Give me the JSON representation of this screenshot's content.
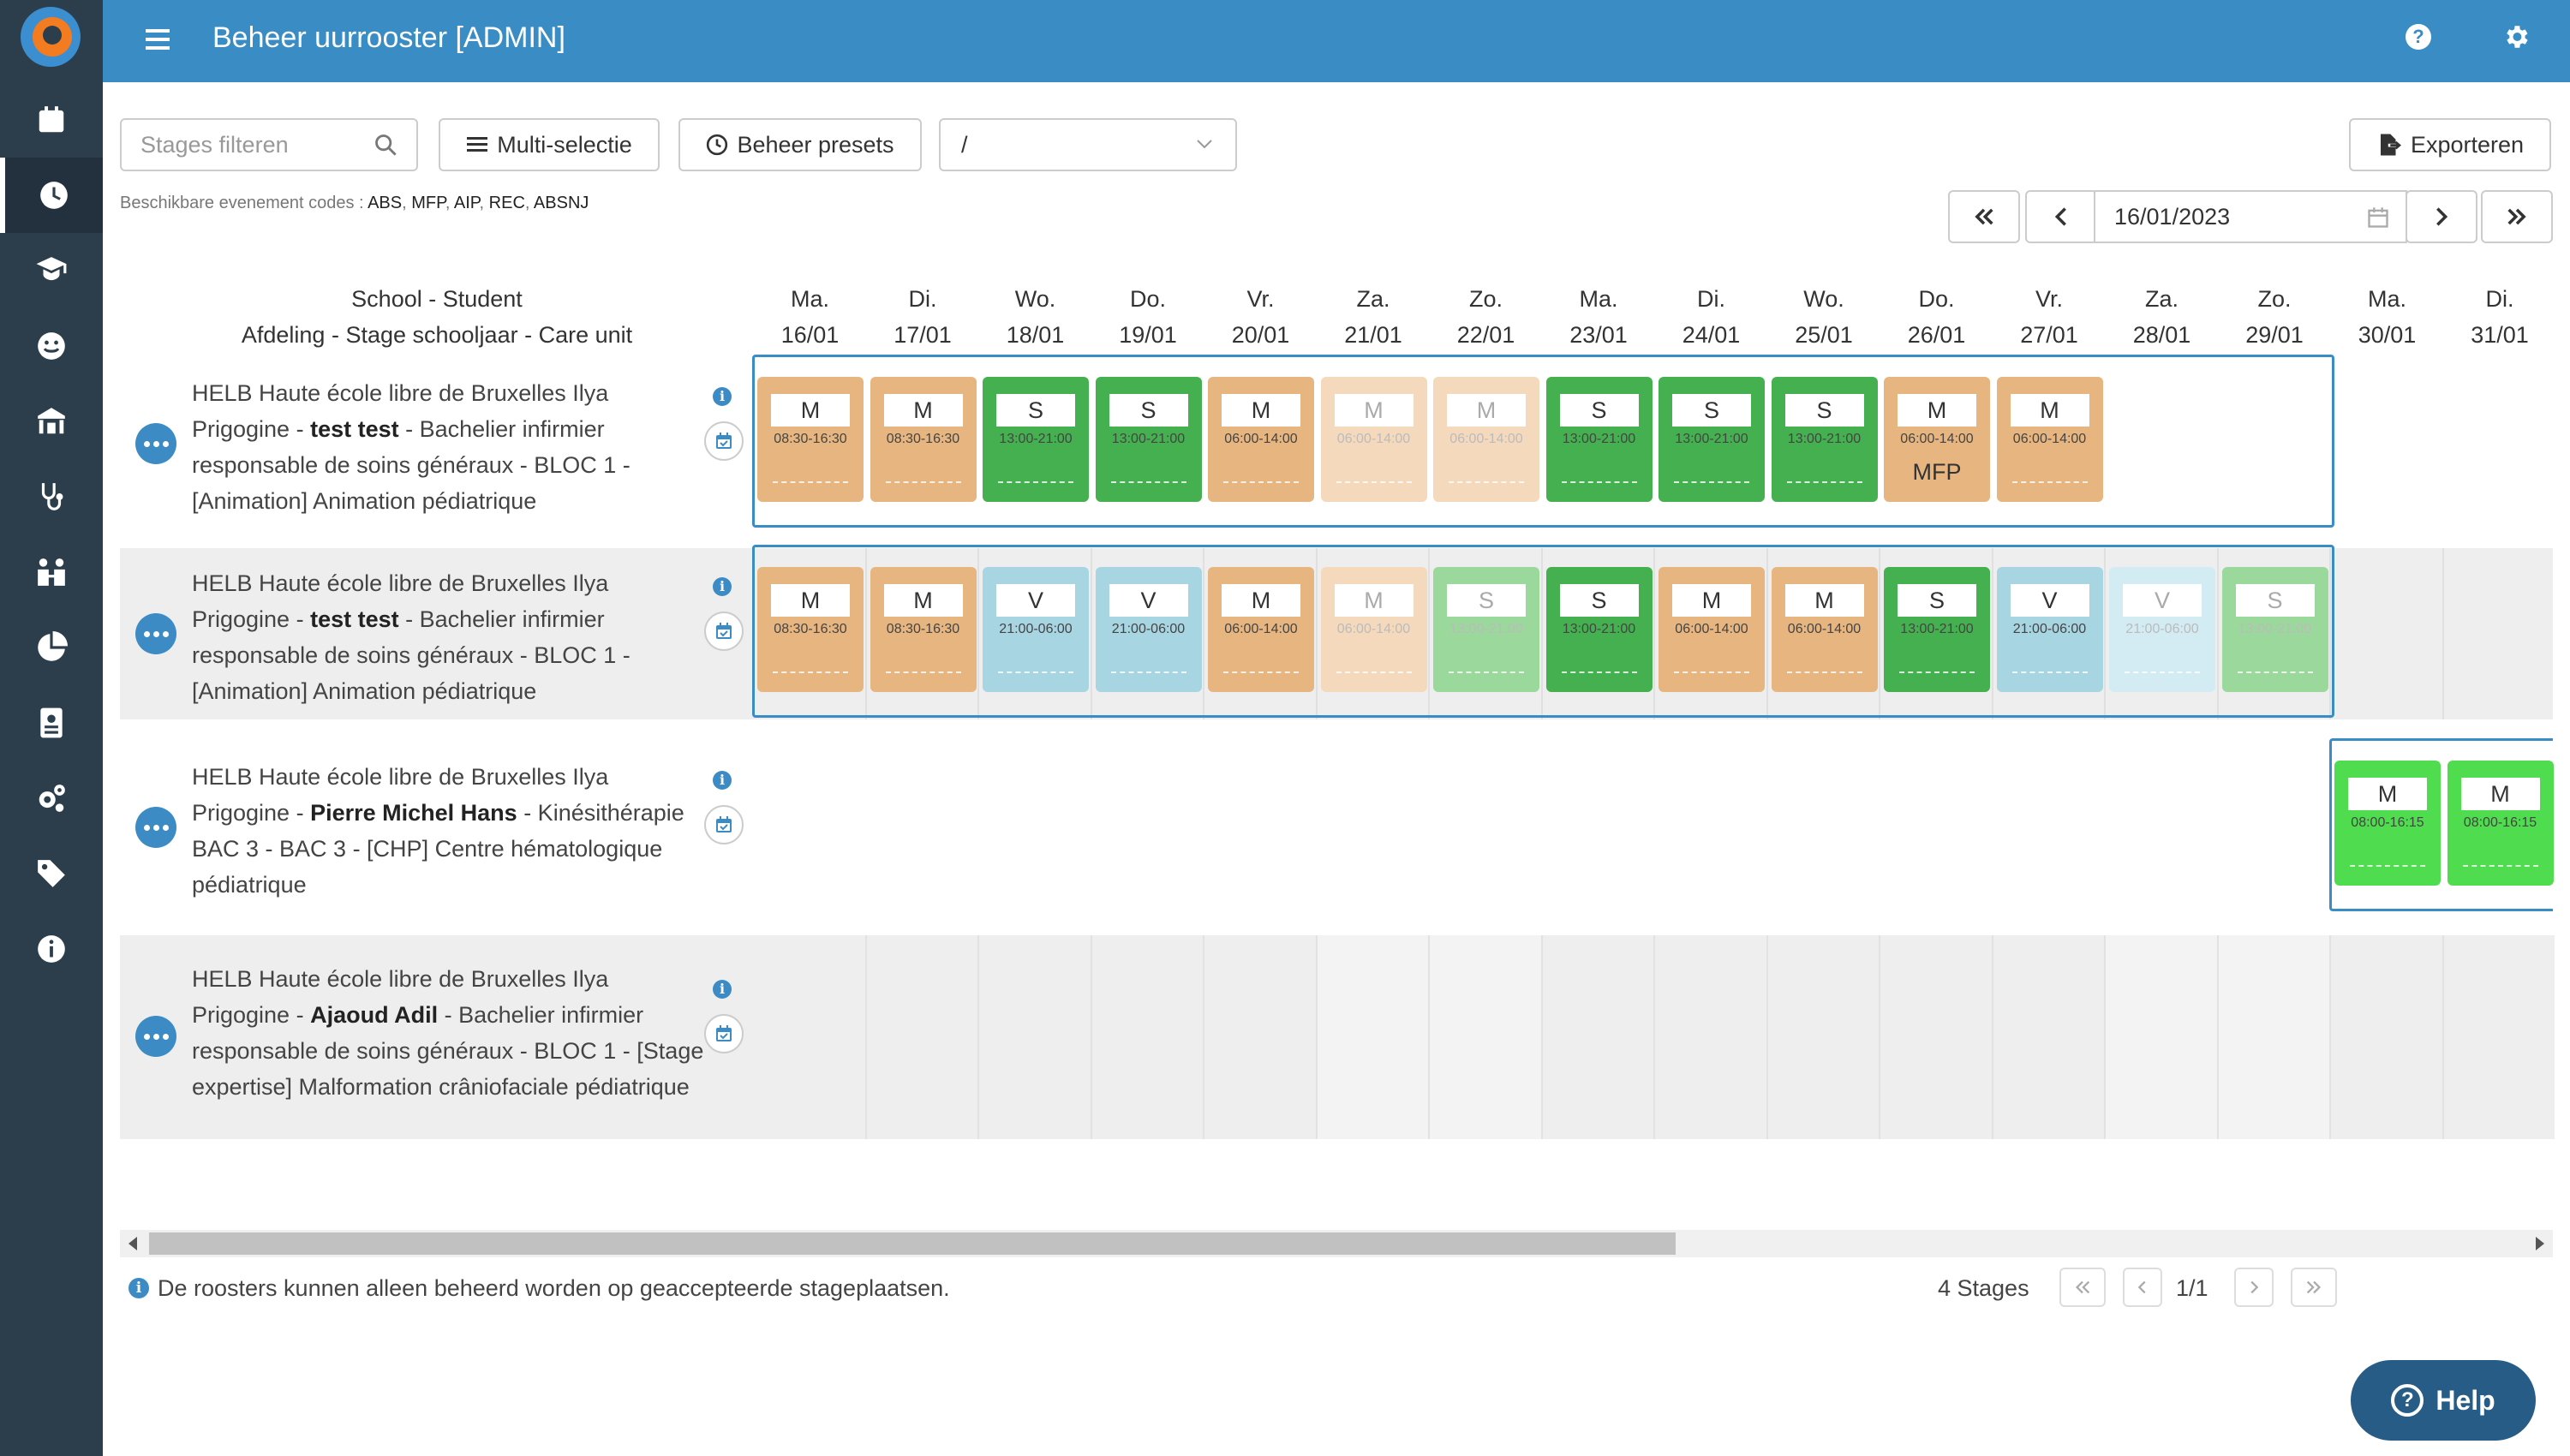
{
  "header": {
    "title": "Beheer uurrooster [ADMIN]"
  },
  "sidebar": {
    "items": [
      "calendar-icon",
      "clock-icon",
      "graduate-icon",
      "smile-icon",
      "school-icon",
      "stethoscope-icon",
      "people-icon",
      "pie-chart-icon",
      "id-card-icon",
      "cogs-icon",
      "tags-icon",
      "info-icon"
    ],
    "active_index": 1
  },
  "toolbar": {
    "filter_placeholder": "Stages filteren",
    "multi_select_label": "Multi-selectie",
    "presets_label": "Beheer presets",
    "preset_value": "/",
    "export_label": "Exporteren",
    "codes_prefix": "Beschikbare evenement codes : ",
    "codes": [
      "ABS",
      "MFP",
      "AIP",
      "REC",
      "ABSNJ"
    ],
    "date": "16/01/2023"
  },
  "columns": {
    "line1": "School - Student",
    "line2": "Afdeling - Stage schooljaar - Care unit"
  },
  "days": [
    {
      "dow": "Ma.",
      "date": "16/01"
    },
    {
      "dow": "Di.",
      "date": "17/01"
    },
    {
      "dow": "Wo.",
      "date": "18/01"
    },
    {
      "dow": "Do.",
      "date": "19/01"
    },
    {
      "dow": "Vr.",
      "date": "20/01"
    },
    {
      "dow": "Za.",
      "date": "21/01"
    },
    {
      "dow": "Zo.",
      "date": "22/01"
    },
    {
      "dow": "Ma.",
      "date": "23/01"
    },
    {
      "dow": "Di.",
      "date": "24/01"
    },
    {
      "dow": "Wo.",
      "date": "25/01"
    },
    {
      "dow": "Do.",
      "date": "26/01"
    },
    {
      "dow": "Vr.",
      "date": "27/01"
    },
    {
      "dow": "Za.",
      "date": "28/01"
    },
    {
      "dow": "Zo.",
      "date": "29/01"
    },
    {
      "dow": "Ma.",
      "date": "30/01"
    },
    {
      "dow": "Di.",
      "date": "31/01"
    }
  ],
  "rows": [
    {
      "pre": "HELB Haute école libre de Bruxelles Ilya Prigogine - ",
      "student": "test test",
      "post": " - Bachelier infirmier responsable de soins généraux - BLOC 1 - [Animation] Animation pédiatrique",
      "selection": [
        0,
        13
      ],
      "shifts": [
        {
          "day": 0,
          "code": "M",
          "time": "08:30-16:30",
          "style": "c-m"
        },
        {
          "day": 1,
          "code": "M",
          "time": "08:30-16:30",
          "style": "c-m"
        },
        {
          "day": 2,
          "code": "S",
          "time": "13:00-21:00",
          "style": "c-s"
        },
        {
          "day": 3,
          "code": "S",
          "time": "13:00-21:00",
          "style": "c-s"
        },
        {
          "day": 4,
          "code": "M",
          "time": "06:00-14:00",
          "style": "c-m"
        },
        {
          "day": 5,
          "code": "M",
          "time": "06:00-14:00",
          "style": "c-m-l"
        },
        {
          "day": 6,
          "code": "M",
          "time": "06:00-14:00",
          "style": "c-m-l"
        },
        {
          "day": 7,
          "code": "S",
          "time": "13:00-21:00",
          "style": "c-s"
        },
        {
          "day": 8,
          "code": "S",
          "time": "13:00-21:00",
          "style": "c-s"
        },
        {
          "day": 9,
          "code": "S",
          "time": "13:00-21:00",
          "style": "c-s"
        },
        {
          "day": 10,
          "code": "M",
          "time": "06:00-14:00",
          "style": "c-m",
          "event": "MFP"
        },
        {
          "day": 11,
          "code": "M",
          "time": "06:00-14:00",
          "style": "c-m"
        }
      ]
    },
    {
      "pre": "HELB Haute école libre de Bruxelles Ilya Prigogine - ",
      "student": "test test",
      "post": " - Bachelier infirmier responsable de soins généraux - BLOC 1 - [Animation] Animation pédiatrique",
      "selection": [
        0,
        13
      ],
      "shifts": [
        {
          "day": 0,
          "code": "M",
          "time": "08:30-16:30",
          "style": "c-m"
        },
        {
          "day": 1,
          "code": "M",
          "time": "08:30-16:30",
          "style": "c-m"
        },
        {
          "day": 2,
          "code": "V",
          "time": "21:00-06:00",
          "style": "c-v"
        },
        {
          "day": 3,
          "code": "V",
          "time": "21:00-06:00",
          "style": "c-v"
        },
        {
          "day": 4,
          "code": "M",
          "time": "06:00-14:00",
          "style": "c-m"
        },
        {
          "day": 5,
          "code": "M",
          "time": "06:00-14:00",
          "style": "c-m-l"
        },
        {
          "day": 6,
          "code": "S",
          "time": "13:00-21:00",
          "style": "c-s-l"
        },
        {
          "day": 7,
          "code": "S",
          "time": "13:00-21:00",
          "style": "c-s"
        },
        {
          "day": 8,
          "code": "M",
          "time": "06:00-14:00",
          "style": "c-m"
        },
        {
          "day": 9,
          "code": "M",
          "time": "06:00-14:00",
          "style": "c-m"
        },
        {
          "day": 10,
          "code": "S",
          "time": "13:00-21:00",
          "style": "c-s"
        },
        {
          "day": 11,
          "code": "V",
          "time": "21:00-06:00",
          "style": "c-v"
        },
        {
          "day": 12,
          "code": "V",
          "time": "21:00-06:00",
          "style": "c-v-l"
        },
        {
          "day": 13,
          "code": "S",
          "time": "13:00-21:00",
          "style": "c-s-l"
        }
      ]
    },
    {
      "pre": "HELB Haute école libre de Bruxelles Ilya Prigogine - ",
      "student": "Pierre Michel Hans",
      "post": " - Kinésithérapie BAC 3 - BAC 3 - [CHP] Centre hématologique pédiatrique",
      "selection": [
        14,
        15
      ],
      "shifts": [
        {
          "day": 14,
          "code": "M",
          "time": "08:00-16:15",
          "style": "c-g"
        },
        {
          "day": 15,
          "code": "M",
          "time": "08:00-16:15",
          "style": "c-g"
        }
      ]
    },
    {
      "pre": "HELB Haute école libre de Bruxelles Ilya Prigogine - ",
      "student": "Ajaoud Adil",
      "post": " - Bachelier infirmier responsable de soins généraux - BLOC 1 - [Stage expertise] Malformation crâniofaciale pédiatrique",
      "selection": null,
      "shifts": []
    }
  ],
  "footer": {
    "note": "De roosters kunnen alleen beheerd worden op geaccepteerde stageplaatsen.",
    "stage_count": "4 Stages",
    "page": "1/1",
    "help_label": "Help"
  }
}
